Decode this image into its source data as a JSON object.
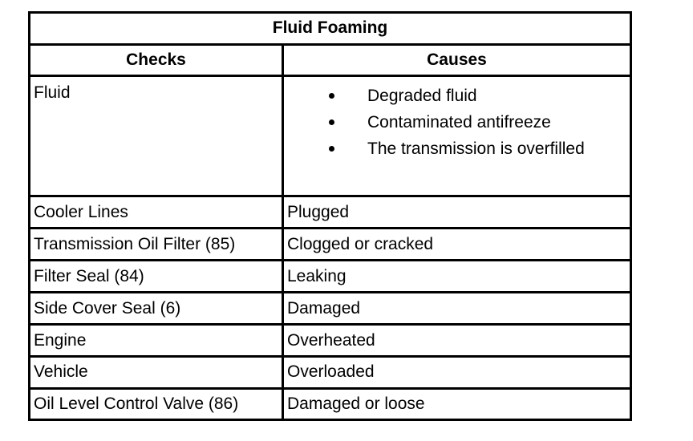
{
  "title": "Fluid Foaming",
  "headers": {
    "checks": "Checks",
    "causes": "Causes"
  },
  "fluid": {
    "check": "Fluid",
    "causes": [
      "Degraded fluid",
      "Contaminated antifreeze",
      "The transmission is overfilled"
    ]
  },
  "rows": [
    {
      "check": "Cooler Lines",
      "cause": "Plugged"
    },
    {
      "check": "Transmission Oil Filter (85)",
      "cause": "Clogged or cracked"
    },
    {
      "check": "Filter Seal (84)",
      "cause": "Leaking"
    },
    {
      "check": "Side Cover Seal (6)",
      "cause": "Damaged"
    },
    {
      "check": "Engine",
      "cause": "Overheated"
    },
    {
      "check": "Vehicle",
      "cause": "Overloaded"
    },
    {
      "check": "Oil Level Control Valve (86)",
      "cause": "Damaged or loose"
    }
  ]
}
